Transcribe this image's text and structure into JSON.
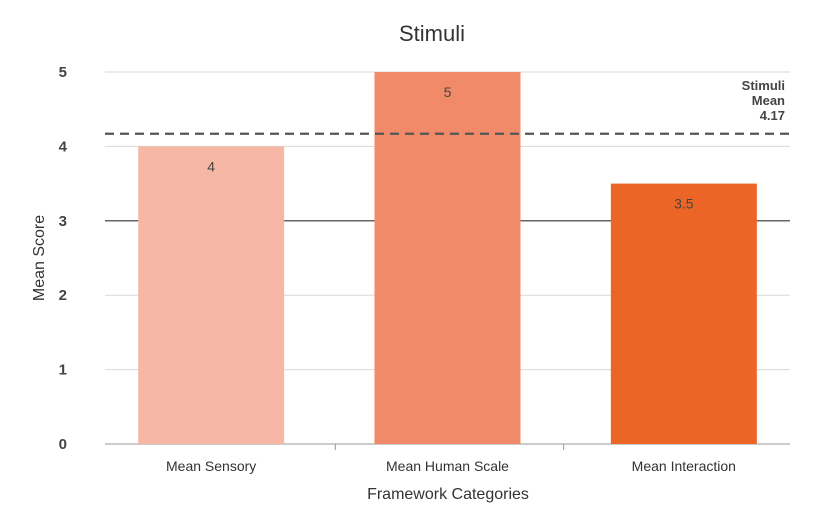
{
  "chart_data": {
    "type": "bar",
    "title": "Stimuli",
    "xlabel": "Framework Categories",
    "ylabel": "Mean Score",
    "categories": [
      "Mean Sensory",
      "Mean Human Scale",
      "Mean Interaction"
    ],
    "values": [
      4,
      5,
      3.5
    ],
    "data_labels": [
      "4",
      "5",
      "3.5"
    ],
    "bar_colors": [
      "#f6b8a4",
      "#f08a68",
      "#ea6526"
    ],
    "ylim": [
      0,
      5
    ],
    "yticks": [
      "0",
      "1",
      "2",
      "3",
      "4",
      "5"
    ],
    "grid": true,
    "reference_line": {
      "value": 4.17,
      "style": "dashed",
      "label_lines": [
        "Stimuli",
        "Mean",
        "4.17"
      ]
    }
  }
}
